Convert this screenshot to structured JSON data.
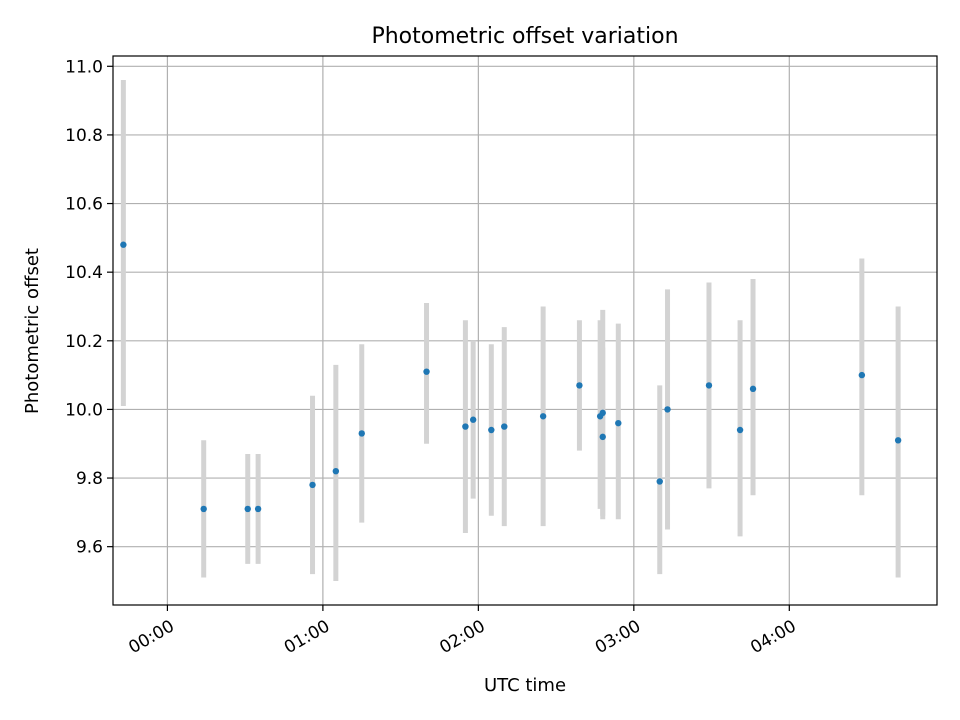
{
  "chart_data": {
    "type": "scatter",
    "title": "Photometric offset variation",
    "xlabel": "UTC time",
    "ylabel": "Photometric offset",
    "x_unit": "UTC time (HH:MM)",
    "xlim": [
      "-00:21",
      "04:57"
    ],
    "ylim": [
      9.43,
      11.03
    ],
    "x_ticks": [
      "00:00",
      "01:00",
      "02:00",
      "03:00",
      "04:00"
    ],
    "y_ticks": [
      "9.6",
      "9.8",
      "10.0",
      "10.2",
      "10.4",
      "10.6",
      "10.8",
      "11.0"
    ],
    "grid": true,
    "colors": {
      "point": "#1f77b4",
      "errorbar": "#d3d3d3",
      "grid": "#b0b0b0",
      "axes": "#000000"
    },
    "points": [
      {
        "x": "-00:17",
        "y": 10.48,
        "ylo": 10.01,
        "yhi": 10.96
      },
      {
        "x": "00:14",
        "y": 9.71,
        "ylo": 9.51,
        "yhi": 9.91
      },
      {
        "x": "00:31",
        "y": 9.71,
        "ylo": 9.55,
        "yhi": 9.87
      },
      {
        "x": "00:35",
        "y": 9.71,
        "ylo": 9.55,
        "yhi": 9.87
      },
      {
        "x": "00:56",
        "y": 9.78,
        "ylo": 9.52,
        "yhi": 10.04
      },
      {
        "x": "01:05",
        "y": 9.82,
        "ylo": 9.5,
        "yhi": 10.13
      },
      {
        "x": "01:15",
        "y": 9.93,
        "ylo": 9.67,
        "yhi": 10.19
      },
      {
        "x": "01:40",
        "y": 10.11,
        "ylo": 9.9,
        "yhi": 10.31
      },
      {
        "x": "01:55",
        "y": 9.95,
        "ylo": 9.64,
        "yhi": 10.26
      },
      {
        "x": "01:58",
        "y": 9.97,
        "ylo": 9.74,
        "yhi": 10.2
      },
      {
        "x": "02:05",
        "y": 9.94,
        "ylo": 9.69,
        "yhi": 10.19
      },
      {
        "x": "02:10",
        "y": 9.95,
        "ylo": 9.66,
        "yhi": 10.24
      },
      {
        "x": "02:25",
        "y": 9.98,
        "ylo": 9.66,
        "yhi": 10.3
      },
      {
        "x": "02:39",
        "y": 10.07,
        "ylo": 9.88,
        "yhi": 10.26
      },
      {
        "x": "02:47",
        "y": 9.98,
        "ylo": 9.71,
        "yhi": 10.26
      },
      {
        "x": "02:48",
        "y": 9.99,
        "ylo": 9.69,
        "yhi": 10.29
      },
      {
        "x": "02:48",
        "y": 9.92,
        "ylo": 9.68,
        "yhi": 10.18
      },
      {
        "x": "02:54",
        "y": 9.96,
        "ylo": 9.68,
        "yhi": 10.25
      },
      {
        "x": "03:10",
        "y": 9.79,
        "ylo": 9.52,
        "yhi": 10.07
      },
      {
        "x": "03:13",
        "y": 10.0,
        "ylo": 9.65,
        "yhi": 10.35
      },
      {
        "x": "03:29",
        "y": 10.07,
        "ylo": 9.77,
        "yhi": 10.37
      },
      {
        "x": "03:41",
        "y": 9.94,
        "ylo": 9.63,
        "yhi": 10.26
      },
      {
        "x": "03:46",
        "y": 10.06,
        "ylo": 9.75,
        "yhi": 10.38
      },
      {
        "x": "04:28",
        "y": 10.1,
        "ylo": 9.75,
        "yhi": 10.44
      },
      {
        "x": "04:42",
        "y": 9.91,
        "ylo": 9.51,
        "yhi": 10.3
      }
    ]
  }
}
